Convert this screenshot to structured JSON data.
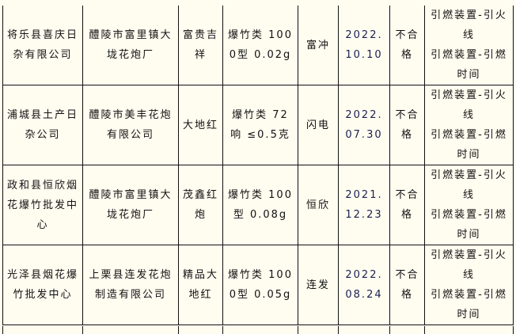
{
  "rows": [
    {
      "buyer": "将乐县喜庆日杂有限公司",
      "maker": "醴陵市富里镇大垅花炮厂",
      "product": "富贵吉祥",
      "spec": "爆竹类 1000型 0.02g",
      "brand": "富冲",
      "date": "2022.10.10",
      "result": "不合格",
      "items": [
        "引燃装置-引火线",
        "引燃装置-引燃时间"
      ]
    },
    {
      "buyer": "浦城县土产日杂公司",
      "maker": "醴陵市美丰花炮有限公司",
      "product": "大地红",
      "spec": "爆竹类 72响 ≤0.5克",
      "brand": "闪电",
      "date": "2022.07.30",
      "result": "不合格",
      "items": [
        "引燃装置-引火线",
        "引燃装置-引燃时间"
      ]
    },
    {
      "buyer": "政和县恒欣烟花爆竹批发中心",
      "maker": "醴陵市富里镇大垅花炮厂",
      "product": "茂鑫红炮",
      "spec": "爆竹类 100型 0.08g",
      "brand": "恒欣",
      "date": "2021.12.23",
      "result": "不合格",
      "items": [
        "引燃装置-引火线",
        "引燃装置-引燃时间"
      ]
    },
    {
      "buyer": "光泽县烟花爆竹批发中心",
      "maker": "上栗县连发花炮制造有限公司",
      "product": "精品大地红",
      "spec": "爆竹类 1000型 0.05g",
      "brand": "连发",
      "date": "2022.08.24",
      "result": "不合格",
      "items": [
        "引燃装置-引火线",
        "引燃装置-引燃时间"
      ]
    }
  ]
}
